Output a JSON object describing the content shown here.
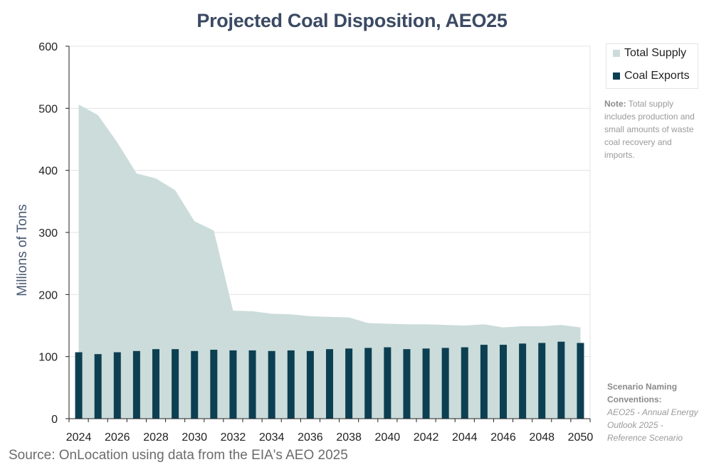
{
  "chart_data": {
    "type": "area+bar",
    "title": "Projected Coal Disposition, AEO25",
    "ylabel": "Millions of Tons",
    "xlabel": "",
    "ylim": [
      0,
      600
    ],
    "yticks": [
      0,
      100,
      200,
      300,
      400,
      500,
      600
    ],
    "x": [
      2024,
      2025,
      2026,
      2027,
      2028,
      2029,
      2030,
      2031,
      2032,
      2033,
      2034,
      2035,
      2036,
      2037,
      2038,
      2039,
      2040,
      2041,
      2042,
      2043,
      2044,
      2045,
      2046,
      2047,
      2048,
      2049,
      2050
    ],
    "xtick_labels": [
      "2024",
      "2026",
      "2028",
      "2030",
      "2032",
      "2034",
      "2036",
      "2038",
      "2040",
      "2042",
      "2044",
      "2046",
      "2048",
      "2050"
    ],
    "grid": "horizontal",
    "legend_position": "right",
    "series": [
      {
        "name": "Total Supply",
        "kind": "area",
        "color": "#cbdcda",
        "values": [
          506,
          489,
          445,
          395,
          387,
          368,
          318,
          303,
          174,
          173,
          169,
          168,
          165,
          164,
          163,
          154,
          153,
          152,
          152,
          151,
          150,
          152,
          147,
          149,
          149,
          151,
          147
        ]
      },
      {
        "name": "Coal Exports",
        "kind": "bar",
        "color": "#0d3f52",
        "values": [
          107,
          104,
          107,
          109,
          112,
          112,
          109,
          111,
          110,
          110,
          109,
          110,
          109,
          112,
          113,
          114,
          115,
          112,
          113,
          114,
          115,
          119,
          119,
          121,
          122,
          124,
          122
        ]
      }
    ]
  },
  "note": {
    "label": "Note:",
    "text": "Total supply includes production and small amounts of waste coal recovery and imports."
  },
  "scenario": {
    "heading": "Scenario Naming Conventions:",
    "body": "AEO25 - Annual Energy Outlook 2025 - Reference Scenario"
  },
  "source": "Source: OnLocation using data from the EIA's AEO 2025"
}
